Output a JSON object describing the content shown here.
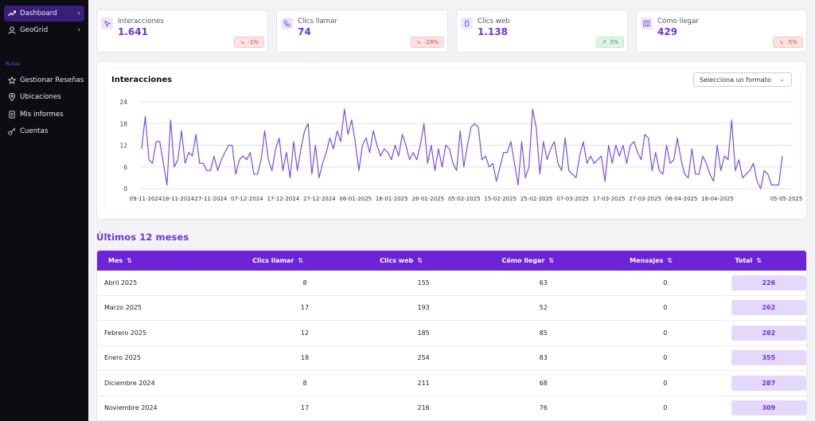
{
  "sidebar": {
    "top_items": [
      {
        "label": "Dashboard",
        "icon": "trend-icon",
        "active": true
      },
      {
        "label": "GeoGrid",
        "icon": "user-icon",
        "active": false
      }
    ],
    "section_label": "Rutas",
    "items": [
      {
        "label": "Gestionar Reseñas",
        "icon": "star-icon"
      },
      {
        "label": "Ubicaciones",
        "icon": "pin-icon"
      },
      {
        "label": "Mis informes",
        "icon": "document-icon"
      },
      {
        "label": "Cuentas",
        "icon": "key-icon"
      }
    ]
  },
  "stats": [
    {
      "title": "Interacciones",
      "value": "1.641",
      "change": "-1%",
      "direction": "down",
      "icon": "interactions-icon"
    },
    {
      "title": "Clics llamar",
      "value": "74",
      "change": "-28%",
      "direction": "down",
      "icon": "phone-icon"
    },
    {
      "title": "Clics web",
      "value": "1.138",
      "change": "3%",
      "direction": "up",
      "icon": "mouse-icon"
    },
    {
      "title": "Cómo llegar",
      "value": "429",
      "change": "-5%",
      "direction": "down",
      "icon": "map-icon"
    }
  ],
  "chart_section": {
    "title": "Interacciones",
    "select_placeholder": "Selecciona un formato"
  },
  "chart_data": {
    "type": "line",
    "title": "Interacciones",
    "ylim": [
      0,
      24
    ],
    "yticks": [
      0,
      6,
      12,
      18,
      24
    ],
    "x_tick_labels": [
      "09-11-2024",
      "18-11-2024",
      "27-11-2024",
      "07-12-2024",
      "17-12-2024",
      "27-12-2024",
      "06-01-2025",
      "16-01-2025",
      "26-01-2025",
      "05-02-2025",
      "15-02-2025",
      "25-02-2025",
      "07-03-2025",
      "17-03-2025",
      "27-03-2025",
      "06-04-2025",
      "16-04-2025",
      "05-05-2025"
    ],
    "x_tick_index": [
      0,
      9,
      18,
      28,
      38,
      48,
      58,
      68,
      78,
      88,
      98,
      108,
      118,
      128,
      138,
      148,
      158,
      177
    ],
    "color": "#7b4fe0",
    "series": [
      {
        "name": "Interacciones",
        "values": [
          11,
          20,
          8,
          7,
          13,
          13,
          7,
          1,
          19,
          6,
          8,
          16,
          7,
          10,
          9,
          15,
          7,
          7,
          5,
          5,
          9,
          5,
          8,
          10,
          12,
          12,
          4,
          8,
          9,
          8,
          10,
          4,
          4,
          8,
          16,
          8,
          5,
          11,
          14,
          5,
          10,
          3,
          13,
          5,
          11,
          16,
          18,
          4,
          12,
          3,
          7,
          10,
          14,
          11,
          16,
          13,
          22,
          15,
          19,
          13,
          5,
          12,
          14,
          10,
          16,
          12,
          9,
          11,
          10,
          8,
          12,
          9,
          15,
          12,
          8,
          10,
          8,
          12,
          18,
          7,
          12,
          5,
          11,
          6,
          12,
          11,
          7,
          5,
          16,
          6,
          12,
          17,
          18,
          17,
          8,
          9,
          6,
          7,
          2,
          6,
          10,
          10,
          13,
          7,
          1,
          13,
          3,
          6,
          22,
          17,
          4,
          13,
          8,
          11,
          13,
          7,
          5,
          14,
          5,
          4,
          3,
          9,
          13,
          7,
          9,
          7,
          8,
          9,
          2,
          12,
          7,
          12,
          9,
          12,
          7,
          12,
          13,
          10,
          8,
          15,
          14,
          5,
          10,
          5,
          4,
          12,
          7,
          8,
          14,
          8,
          4,
          3,
          11,
          4,
          4,
          9,
          7,
          4,
          2,
          12,
          5,
          9,
          8,
          19,
          5,
          8,
          3,
          4,
          5,
          7,
          2,
          0,
          5,
          4,
          1,
          1,
          1,
          9
        ]
      }
    ]
  },
  "table_section": {
    "title": "Últimos 12 meses",
    "columns": [
      "Mes",
      "Clics llamar",
      "Clics web",
      "Cómo llegar",
      "Mensajes",
      "Total"
    ],
    "sort_icon": "⇅",
    "rows": [
      {
        "mes": "Abril 2025",
        "llamar": "8",
        "web": "155",
        "llegar": "63",
        "mensajes": "0",
        "total": "226"
      },
      {
        "mes": "Marzo 2025",
        "llamar": "17",
        "web": "193",
        "llegar": "52",
        "mensajes": "0",
        "total": "262"
      },
      {
        "mes": "Febrero 2025",
        "llamar": "12",
        "web": "185",
        "llegar": "85",
        "mensajes": "0",
        "total": "282"
      },
      {
        "mes": "Enero 2025",
        "llamar": "18",
        "web": "254",
        "llegar": "83",
        "mensajes": "0",
        "total": "355"
      },
      {
        "mes": "Diciembre 2024",
        "llamar": "8",
        "web": "211",
        "llegar": "68",
        "mensajes": "0",
        "total": "287"
      },
      {
        "mes": "Noviembre 2024",
        "llamar": "17",
        "web": "216",
        "llegar": "76",
        "mensajes": "0",
        "total": "309"
      }
    ]
  },
  "colors": {
    "accent": "#6d35d8",
    "header": "#6d24d9",
    "sidebar": "#0c0c12",
    "active": "#3a1f7a"
  }
}
